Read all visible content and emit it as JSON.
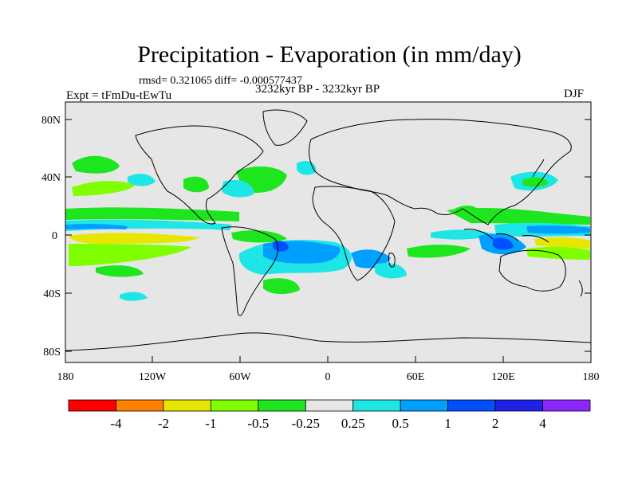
{
  "title": "Precipitation - Evaporation (in mm/day)",
  "stats": "rmsd= 0.321065 diff= -0.000577437",
  "experiment": "Expt = tFmDu-tEwTu",
  "period": "3232kyr BP - 3232kyr BP",
  "season": "DJF",
  "lat_ticks": [
    "80N",
    "40N",
    "0",
    "40S",
    "80S"
  ],
  "lon_ticks": [
    "180",
    "120W",
    "60W",
    "0",
    "60E",
    "120E",
    "180"
  ],
  "colorbar": {
    "labels": [
      "-4",
      "-2",
      "-1",
      "-0.5",
      "-0.25",
      "0.25",
      "0.5",
      "1",
      "2",
      "4"
    ],
    "colors": [
      "#ff0000",
      "#ff8000",
      "#e6e600",
      "#80ff00",
      "#1ee61e",
      "#e6e6e6",
      "#1ee6e6",
      "#00a0ff",
      "#0050ff",
      "#2020e6",
      "#8c28ff"
    ]
  },
  "style": {
    "land_background": "#e6e6e6",
    "coast": "#000000"
  }
}
